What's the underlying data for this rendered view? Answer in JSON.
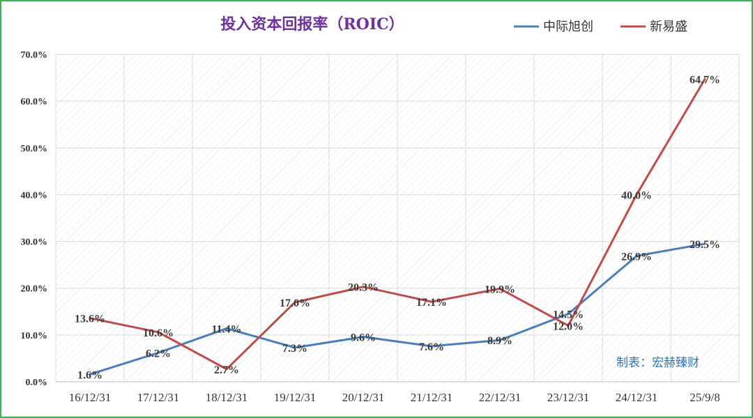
{
  "chart_data": {
    "type": "line",
    "title": "投入资本回报率（ROIC）",
    "categories": [
      "16/12/31",
      "17/12/31",
      "18/12/31",
      "19/12/31",
      "20/12/31",
      "21/12/31",
      "22/12/31",
      "23/12/31",
      "24/12/31",
      "25/9/8"
    ],
    "series": [
      {
        "name": "中际旭创",
        "color": "#4a7ebb",
        "values": [
          1.6,
          6.2,
          11.4,
          7.3,
          9.6,
          7.6,
          8.9,
          14.5,
          26.9,
          29.5
        ],
        "labels": [
          "1.6%",
          "6.2%",
          "11.4%",
          "7.3%",
          "9.6%",
          "7.6%",
          "8.9%",
          "14.5%",
          "26.9%",
          "29.5%"
        ]
      },
      {
        "name": "新易盛",
        "color": "#be4b48",
        "values": [
          13.6,
          10.6,
          2.7,
          17.0,
          20.3,
          17.1,
          19.9,
          12.0,
          40.0,
          64.7
        ],
        "labels": [
          "13.6%",
          "10.6%",
          "2.7%",
          "17.0%",
          "20.3%",
          "17.1%",
          "19.9%",
          "12.0%",
          "40.0%",
          "64.7%"
        ]
      }
    ],
    "yticks": [
      "0.0%",
      "10.0%",
      "20.0%",
      "30.0%",
      "40.0%",
      "50.0%",
      "60.0%",
      "70.0%"
    ],
    "ylim": [
      0,
      70
    ],
    "grid": true,
    "legend": "top-right",
    "title_color": "#7030a0"
  },
  "source_note": "制表：宏赫臻财",
  "source_color": "#2e75b6",
  "frame_color": "#2fb84f"
}
